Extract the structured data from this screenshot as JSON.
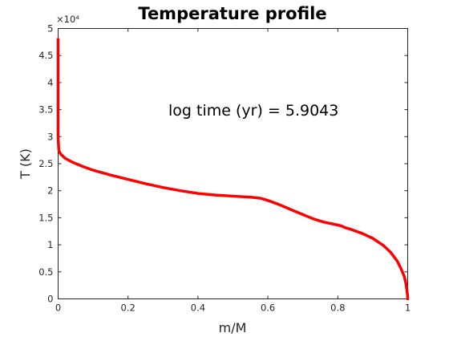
{
  "chart_data": {
    "type": "line",
    "title": "Temperature profile",
    "xlabel": "m/M",
    "ylabel": "T (K)",
    "xlim": [
      0,
      1
    ],
    "ylim": [
      0,
      50000
    ],
    "x_ticks": [
      0,
      0.2,
      0.4,
      0.6,
      0.8,
      1
    ],
    "x_tick_labels": [
      "0",
      "0.2",
      "0.4",
      "0.6",
      "0.8",
      "1"
    ],
    "y_ticks": [
      0,
      5000,
      10000,
      15000,
      20000,
      25000,
      30000,
      35000,
      40000,
      45000,
      50000
    ],
    "y_tick_labels": [
      "0",
      "0.5",
      "1",
      "1.5",
      "2",
      "2.5",
      "3",
      "3.5",
      "4",
      "4.5",
      "5"
    ],
    "y_exponent_label": "×10⁴",
    "annotation": "log time (yr) = 5.9043",
    "grid": false,
    "series_color": "#ff0000",
    "series": [
      {
        "x": [
          0.0,
          0.0,
          0.001,
          0.002,
          0.005,
          0.01,
          0.02,
          0.04,
          0.07,
          0.1,
          0.15,
          0.2,
          0.25,
          0.3,
          0.35,
          0.4,
          0.45,
          0.5,
          0.55,
          0.58,
          0.6,
          0.63,
          0.67,
          0.7,
          0.73,
          0.76,
          0.79,
          0.81,
          0.82,
          0.84,
          0.87,
          0.9,
          0.93,
          0.95,
          0.97,
          0.98,
          0.99,
          0.995,
          0.998,
          1.0,
          1.0
        ],
        "y": [
          48000,
          30000,
          28500,
          27500,
          27000,
          26600,
          26000,
          25300,
          24500,
          23800,
          22900,
          22100,
          21300,
          20600,
          20000,
          19500,
          19200,
          19000,
          18800,
          18600,
          18200,
          17500,
          16400,
          15600,
          14800,
          14200,
          13800,
          13500,
          13200,
          12800,
          12100,
          11200,
          9900,
          8700,
          7000,
          5700,
          4200,
          2800,
          1400,
          500,
          0
        ]
      }
    ]
  }
}
